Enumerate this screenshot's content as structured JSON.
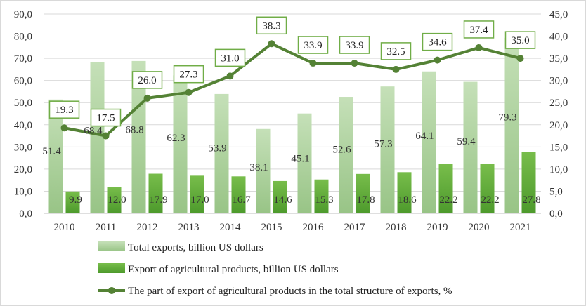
{
  "chart_data": {
    "type": "bar",
    "categories": [
      "2010",
      "2011",
      "2012",
      "2013",
      "2014",
      "2015",
      "2016",
      "2017",
      "2018",
      "2019",
      "2020",
      "2021"
    ],
    "series": [
      {
        "name": "Total exports, billion US dollars",
        "type": "bar",
        "axis": "left",
        "color": "#b5d6a7",
        "values": [
          51.4,
          68.4,
          68.8,
          62.3,
          53.9,
          38.1,
          45.1,
          52.6,
          57.3,
          64.1,
          59.4,
          79.3
        ]
      },
      {
        "name": "Export of agricultural products, billion US dollars",
        "type": "bar",
        "axis": "left",
        "color": "#6db33f",
        "values": [
          9.9,
          12.0,
          17.9,
          17.0,
          16.7,
          14.6,
          15.3,
          17.8,
          18.6,
          22.2,
          22.2,
          27.8
        ]
      },
      {
        "name": "The part of export of agricultural products in the total structure of exports, %",
        "type": "line",
        "axis": "right",
        "color": "#548235",
        "values": [
          19.3,
          17.5,
          26.0,
          27.3,
          31.0,
          38.3,
          33.9,
          33.9,
          32.5,
          34.6,
          37.4,
          35.0
        ]
      }
    ],
    "y_left": {
      "ylim": [
        0,
        90
      ],
      "ticks": [
        "0,0",
        "10,0",
        "20,0",
        "30,0",
        "40,0",
        "50,0",
        "60,0",
        "70,0",
        "80,0",
        "90,0"
      ]
    },
    "y_right": {
      "ylim": [
        0,
        45
      ],
      "ticks": [
        "0,0",
        "5,0",
        "10,0",
        "15,0",
        "20,0",
        "25,0",
        "30,0",
        "35,0",
        "40,0",
        "45,0"
      ]
    },
    "grid": true,
    "legend_position": "bottom"
  }
}
